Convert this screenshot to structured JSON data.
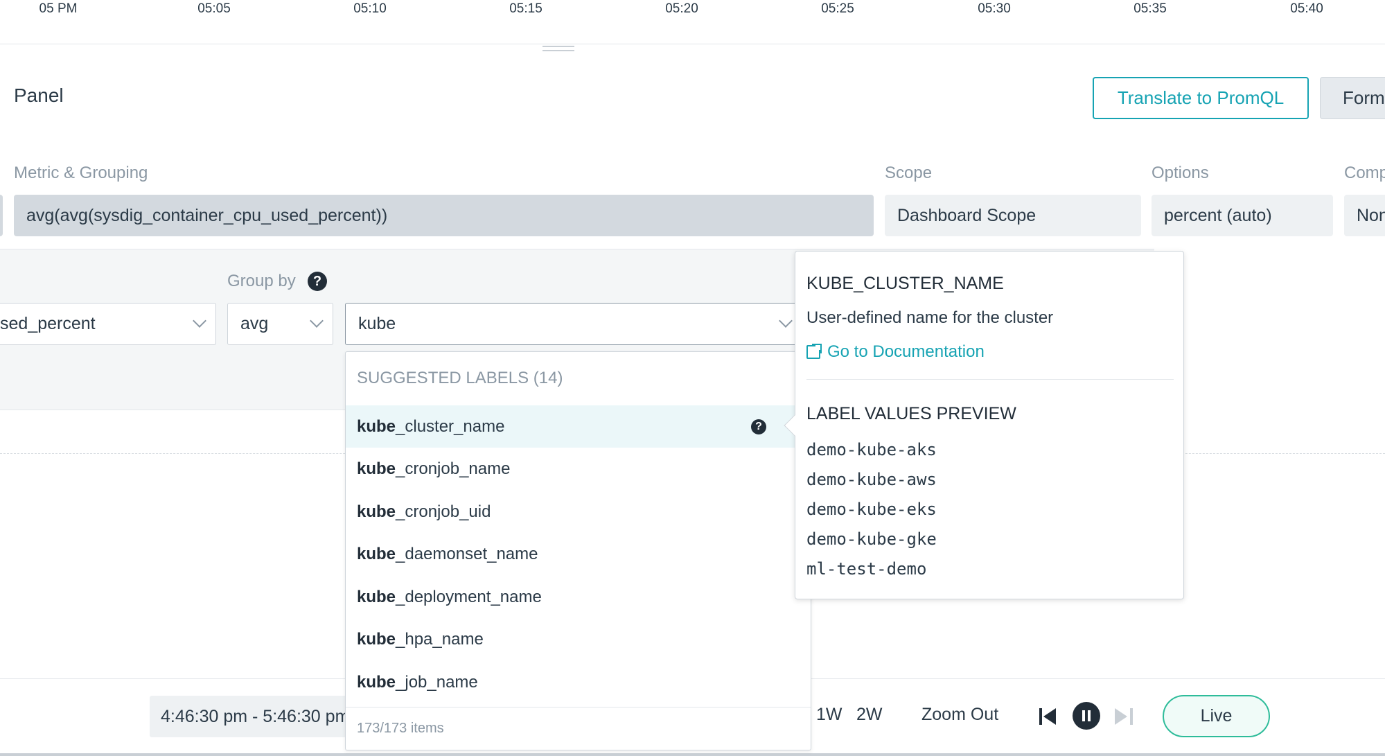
{
  "timeline": {
    "ticks": [
      "05 PM",
      "05:05",
      "05:10",
      "05:15",
      "05:20",
      "05:25",
      "05:30",
      "05:35",
      "05:40"
    ]
  },
  "panel": {
    "title": "Panel",
    "translate_button": "Translate to PromQL",
    "form_button": "Form"
  },
  "columns": {
    "metric_label": "Metric & Grouping",
    "scope_label": "Scope",
    "options_label": "Options",
    "compare_label": "Comp",
    "metric_value": "avg(avg(sysdig_container_cpu_used_percent))",
    "scope_value": "Dashboard Scope",
    "options_value": "percent (auto)",
    "compare_value": "None"
  },
  "config": {
    "metric_select": "sed_percent",
    "group_by_label": "Group by",
    "aggregation_select": "avg",
    "label_search": "kube"
  },
  "dropdown": {
    "header": "SUGGESTED LABELS (14)",
    "items": [
      {
        "prefix": "kube",
        "suffix": "_cluster_name"
      },
      {
        "prefix": "kube",
        "suffix": "_cronjob_name"
      },
      {
        "prefix": "kube",
        "suffix": "_cronjob_uid"
      },
      {
        "prefix": "kube",
        "suffix": "_daemonset_name"
      },
      {
        "prefix": "kube",
        "suffix": "_deployment_name"
      },
      {
        "prefix": "kube",
        "suffix": "_hpa_name"
      },
      {
        "prefix": "kube",
        "suffix": "_job_name"
      }
    ],
    "footer": "173/173 items"
  },
  "tooltip": {
    "title": "KUBE_CLUSTER_NAME",
    "description": "User-defined name for the cluster",
    "doc_link": "Go to Documentation",
    "preview_title": "LABEL VALUES PREVIEW",
    "values": [
      "demo-kube-aks",
      "demo-kube-aws",
      "demo-kube-eks",
      "demo-kube-gke",
      "ml-test-demo"
    ]
  },
  "bottom": {
    "time_range": "4:46:30 pm - 5:46:30 pm",
    "btn_1w": "1W",
    "btn_2w": "2W",
    "zoom_out": "Zoom Out",
    "live": "Live"
  }
}
